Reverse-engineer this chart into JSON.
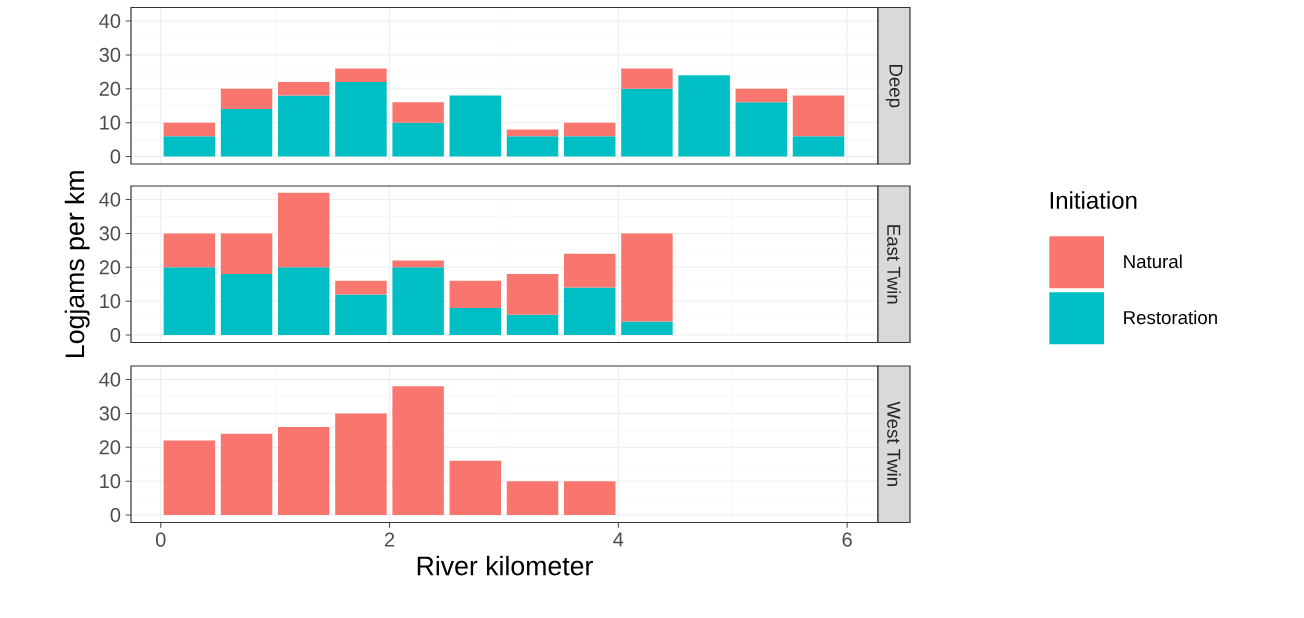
{
  "chart_data": [
    {
      "type": "bar",
      "title": "Deep",
      "stacked": true,
      "x": [
        0.25,
        0.75,
        1.25,
        1.75,
        2.25,
        2.75,
        3.25,
        3.75,
        4.25,
        4.75,
        5.25,
        5.75
      ],
      "series": [
        {
          "color": "#00bfc4",
          "values": [
            6,
            14,
            18,
            22,
            10,
            18,
            6,
            6,
            20,
            24,
            16,
            6
          ]
        },
        {
          "color": "#f8766d",
          "values": [
            4,
            6,
            4,
            4,
            6,
            null,
            2,
            4,
            6,
            null,
            4,
            12
          ]
        }
      ],
      "xlim": [
        -0.26,
        6.27
      ],
      "ylim": [
        -2.2,
        44
      ],
      "xticks": [
        0,
        2,
        4,
        6
      ],
      "yticks": [
        0,
        10,
        20,
        30,
        40
      ],
      "grid": true,
      "tick_labels": "y"
    },
    {
      "type": "bar",
      "title": "East Twin",
      "ylabel": "Logjams per km",
      "legend": "right",
      "legend_title": "Initiation",
      "stacked": true,
      "x": [
        0.25,
        0.75,
        1.25,
        1.75,
        2.25,
        2.75,
        3.25,
        3.75,
        4.25
      ],
      "series": [
        {
          "name": "Restoration",
          "color": "#00bfc4",
          "values": [
            20,
            18,
            20,
            12,
            20,
            8,
            6,
            14,
            4
          ]
        },
        {
          "name": "Natural",
          "color": "#f8766d",
          "values": [
            10,
            12,
            22,
            4,
            2,
            8,
            12,
            10,
            26
          ]
        }
      ],
      "xlim": [
        -0.26,
        6.27
      ],
      "ylim": [
        -2.2,
        44
      ],
      "xticks": [
        0,
        2,
        4,
        6
      ],
      "yticks": [
        0,
        10,
        20,
        30,
        40
      ],
      "grid": true,
      "tick_labels": "y"
    },
    {
      "type": "bar",
      "title": "West Twin",
      "xlabel": "River kilometer",
      "stacked": true,
      "x": [
        0.25,
        0.75,
        1.25,
        1.75,
        2.25,
        2.75,
        3.25,
        3.75
      ],
      "series": [
        {
          "color": "#f8766d",
          "values": [
            22,
            24,
            26,
            30,
            38,
            16,
            10,
            10
          ]
        }
      ],
      "xlim": [
        -0.26,
        6.27
      ],
      "ylim": [
        -2.2,
        44
      ],
      "xticks": [
        0,
        2,
        4,
        6
      ],
      "yticks": [
        0,
        10,
        20,
        30,
        40
      ],
      "grid": true
    }
  ]
}
